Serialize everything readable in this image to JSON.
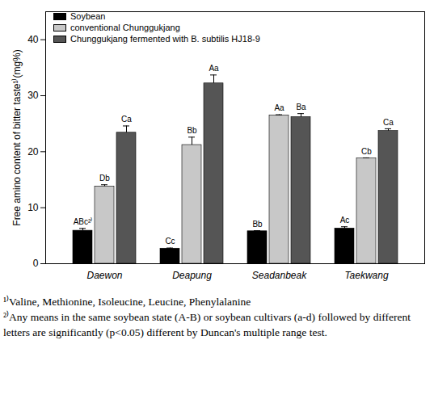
{
  "chart_data": {
    "type": "bar",
    "ylabel": "Free amino content of bitter taste¹⁾(mg%)",
    "categories": [
      "Daewon",
      "Deapung",
      "Seadanbeak",
      "Taekwang"
    ],
    "series": [
      {
        "name": "Soybean",
        "color": "#000000",
        "values": [
          5.9,
          2.7,
          5.8,
          6.3
        ],
        "errors": [
          0.4,
          0.1,
          0.1,
          0.3
        ],
        "letters": [
          "ABc²⁾",
          "Cc",
          "Bb",
          "Ac"
        ]
      },
      {
        "name": "conventional Chunggukjang",
        "color": "#c8c8c8",
        "values": [
          13.8,
          21.2,
          26.5,
          18.8
        ],
        "errors": [
          0.3,
          1.4,
          0.1,
          0.1
        ],
        "letters": [
          "Db",
          "Bb",
          "Aa",
          "Cb"
        ]
      },
      {
        "name": "Chunggukjang fermented with B. subtilis HJ18-9",
        "color": "#555555",
        "values": [
          23.4,
          32.2,
          26.2,
          23.7
        ],
        "errors": [
          1.2,
          1.5,
          0.6,
          0.4
        ],
        "letters": [
          "Ca",
          "Aa",
          "Ba",
          "Ca"
        ]
      }
    ],
    "ylim": [
      0,
      45
    ],
    "yticks": [
      0,
      10,
      20,
      30,
      40
    ],
    "legend": "top-left",
    "notes": [
      "¹⁾Valine, Methionine, Isoleucine, Leucine, Phenylalanine",
      "²⁾Any means in the same soybean state (A-B) or soybean cultivars (a-d) followed by different letters are significantly (p<0.05) different by Duncan's multiple range test."
    ]
  }
}
